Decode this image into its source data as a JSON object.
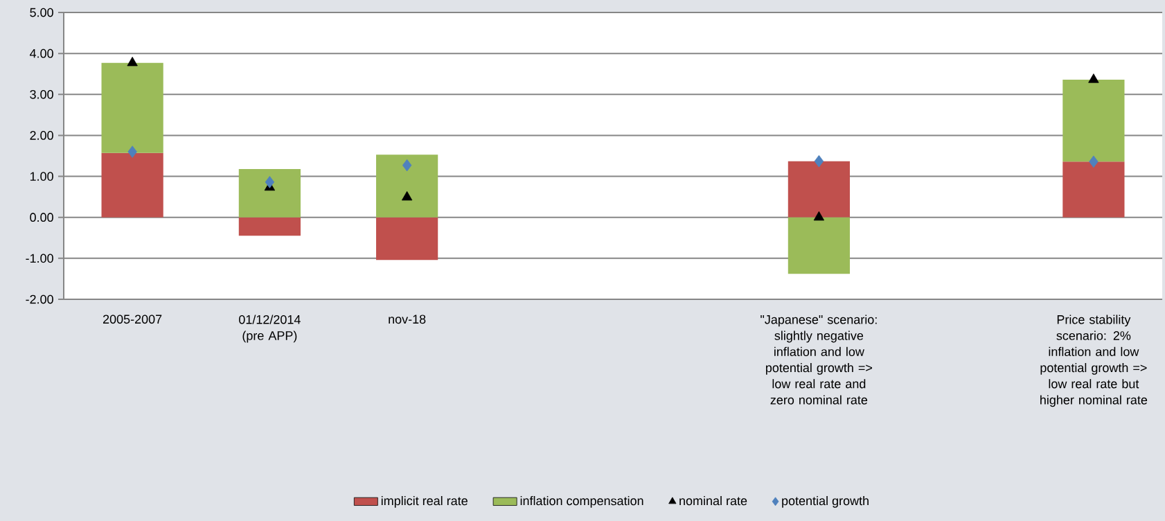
{
  "chart_data": {
    "type": "bar",
    "stacked": true,
    "categories": [
      "2005-2007",
      "01/12/2014 (pre APP)",
      "nov-18",
      null,
      null,
      "\"Japanese\" scenario: slightly negative inflation and low potential growth => low real rate and zero nominal rate",
      null,
      "Price stability scenario: 2% inflation and low potential growth => low real rate but higher nominal rate"
    ],
    "series": [
      {
        "name": "implicit real rate",
        "color": "#c0504d",
        "values": [
          1.57,
          -0.45,
          -1.04,
          null,
          null,
          1.37,
          null,
          1.36
        ]
      },
      {
        "name": "inflation compensation",
        "color": "#9bbb59",
        "values": [
          2.2,
          1.18,
          1.53,
          null,
          null,
          -1.38,
          null,
          2.0
        ]
      },
      {
        "name": "nominal rate",
        "type": "scatter",
        "marker": "triangle",
        "color": "#000000",
        "values": [
          3.77,
          0.73,
          0.49,
          null,
          null,
          0.0,
          null,
          3.36
        ]
      },
      {
        "name": "potential growth",
        "type": "scatter",
        "marker": "diamond",
        "color": "#4f81bd",
        "values": [
          1.6,
          0.86,
          1.27,
          null,
          null,
          1.37,
          null,
          1.36
        ]
      }
    ],
    "ylim": [
      -2,
      5
    ],
    "yticks": [
      {
        "value": -2,
        "label": "-2.00"
      },
      {
        "value": -1,
        "label": "-1.00"
      },
      {
        "value": 0,
        "label": "0.00"
      },
      {
        "value": 1,
        "label": "1.00"
      },
      {
        "value": 2,
        "label": "2.00"
      },
      {
        "value": 3,
        "label": "3.00"
      },
      {
        "value": 4,
        "label": "4.00"
      },
      {
        "value": 5,
        "label": "5.00"
      }
    ],
    "grid": "y",
    "legend": "bottom"
  }
}
